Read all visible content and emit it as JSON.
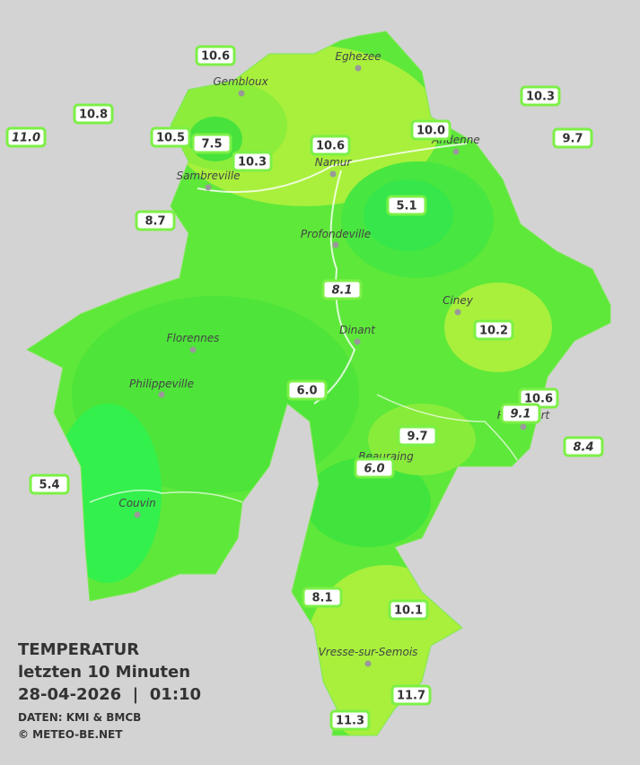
{
  "title": {
    "heading": "TEMPERATUR",
    "subheading": "letzten 10 Minuten",
    "datetime": "28-04-2026  |  01:10",
    "sources": "DATEN: KMI & BMCB",
    "copyright": "© METEO-BE.NET"
  },
  "places": [
    "Eghezee",
    "Gembloux",
    "Andenne",
    "Namur",
    "Sambreville",
    "Profondeville",
    "Ciney",
    "Dinant",
    "Florennes",
    "Philippeville",
    "Rochefort",
    "Beauraing",
    "Couvin",
    "Vresse-sur-Semois"
  ],
  "stations": [
    "10.6",
    "10.8",
    "11.0",
    "10.5",
    "7.5",
    "10.3",
    "10.6",
    "10.0",
    "10.3",
    "9.7",
    "5.1",
    "8.7",
    "8.1",
    "10.2",
    "6.0",
    "10.6",
    "9.1",
    "8.4",
    "9.7",
    "6.0",
    "5.4",
    "8.1",
    "10.1",
    "11.7",
    "11.3"
  ]
}
